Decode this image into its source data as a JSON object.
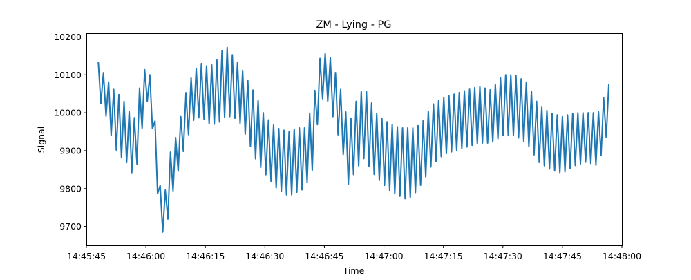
{
  "chart_data": {
    "type": "line",
    "title": "ZM - Lying - PG",
    "xlabel": "Time",
    "ylabel": "Signal",
    "xlim": [
      "14:45:45",
      "14:48:00"
    ],
    "ylim": [
      9650,
      10210
    ],
    "x_tick_labels": [
      "14:45:45",
      "14:46:00",
      "14:46:15",
      "14:46:30",
      "14:46:45",
      "14:47:00",
      "14:47:15",
      "14:47:30",
      "14:47:45",
      "14:48:00"
    ],
    "y_tick_labels": [
      "9700",
      "9800",
      "9900",
      "10000",
      "10100",
      "10200"
    ],
    "grid": false,
    "legend": false,
    "series": [
      {
        "color": "#1f77b4",
        "oscillation_period_s": 1.3,
        "envelope": {
          "time": [
            "14:45:48",
            "14:45:50",
            "14:45:52",
            "14:45:54",
            "14:45:56",
            "14:45:57",
            "14:45:58",
            "14:46:00",
            "14:46:01",
            "14:46:02",
            "14:46:03",
            "14:46:04",
            "14:46:05",
            "14:46:06",
            "14:46:08",
            "14:46:10",
            "14:46:12",
            "14:46:14",
            "14:46:16",
            "14:46:18",
            "14:46:20",
            "14:46:22",
            "14:46:24",
            "14:46:26",
            "14:46:28",
            "14:46:30",
            "14:46:33",
            "14:46:36",
            "14:46:38",
            "14:46:40",
            "14:46:42",
            "14:46:44",
            "14:46:46",
            "14:46:48",
            "14:46:50",
            "14:46:51",
            "14:46:53",
            "14:46:55",
            "14:46:58",
            "14:47:00",
            "14:47:02",
            "14:47:04",
            "14:47:06",
            "14:47:08",
            "14:47:10",
            "14:47:12",
            "14:47:15",
            "14:47:18",
            "14:47:21",
            "14:47:24",
            "14:47:27",
            "14:47:30",
            "14:47:33",
            "14:47:36",
            "14:47:39",
            "14:47:42",
            "14:47:45",
            "14:47:48",
            "14:47:51",
            "14:47:54",
            "14:47:57"
          ],
          "upper": [
            10135,
            10090,
            10060,
            10040,
            10000,
            9980,
            10050,
            10125,
            10100,
            10020,
            9880,
            9760,
            9800,
            9890,
            9950,
            10050,
            10110,
            10130,
            10120,
            10140,
            10180,
            10150,
            10120,
            10080,
            10040,
            9990,
            9960,
            9950,
            9960,
            9960,
            10020,
            10150,
            10160,
            10100,
            10030,
            9960,
            10030,
            10070,
            10000,
            9980,
            9970,
            9960,
            9960,
            9960,
            9980,
            10020,
            10040,
            10050,
            10060,
            10070,
            10060,
            10100,
            10100,
            10080,
            10020,
            10000,
            9990,
            10000,
            10000,
            10000,
            10085
          ],
          "lower": [
            10040,
            9990,
            9910,
            9880,
            9860,
            9820,
            9880,
            10030,
            10030,
            9920,
            9780,
            9690,
            9670,
            9760,
            9840,
            9920,
            9980,
            9990,
            9970,
            9970,
            9990,
            9990,
            9970,
            9920,
            9870,
            9840,
            9800,
            9780,
            9790,
            9800,
            9850,
            10040,
            10030,
            9960,
            9880,
            9810,
            9850,
            9880,
            9830,
            9810,
            9790,
            9780,
            9770,
            9790,
            9820,
            9860,
            9890,
            9900,
            9910,
            9920,
            9920,
            9940,
            9940,
            9920,
            9870,
            9850,
            9840,
            9860,
            9870,
            9860,
            9970
          ]
        }
      }
    ]
  }
}
